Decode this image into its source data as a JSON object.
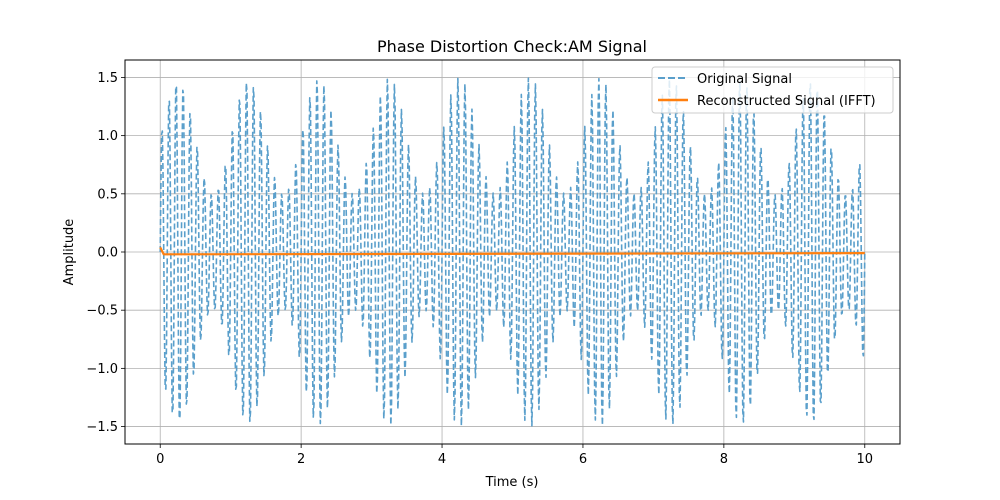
{
  "chart_data": {
    "type": "line",
    "title": "Phase Distortion Check:AM Signal",
    "xlabel": "Time (s)",
    "ylabel": "Amplitude",
    "xlim": [
      -0.5,
      10.5
    ],
    "ylim": [
      -1.65,
      1.65
    ],
    "xticks": [
      0,
      2,
      4,
      6,
      8,
      10
    ],
    "xtick_labels": [
      "0",
      "2",
      "4",
      "6",
      "8",
      "10"
    ],
    "yticks": [
      -1.5,
      -1.0,
      -0.5,
      0.0,
      0.5,
      1.0,
      1.5
    ],
    "ytick_labels": [
      "−1.5",
      "−1.0",
      "−0.5",
      "0.0",
      "0.5",
      "1.0",
      "1.5"
    ],
    "grid": true,
    "legend_position": "upper right",
    "series": [
      {
        "name": "Original Signal",
        "style": "dashed",
        "color": "#5a9fcb",
        "function": "(1 + 0.5*sin(2*pi*1*t)) * sin(2*pi*10*t)",
        "carrier_frequency_hz": 10,
        "modulation_frequency_hz": 1,
        "modulation_index": 0.5,
        "t_range": [
          0,
          10
        ],
        "samples": 1000
      },
      {
        "name": "Reconstructed Signal (IFFT)",
        "style": "solid",
        "color": "#ff7f0e",
        "x": [
          0,
          0.05,
          10
        ],
        "y": [
          0.04,
          -0.02,
          -0.01
        ]
      }
    ]
  }
}
